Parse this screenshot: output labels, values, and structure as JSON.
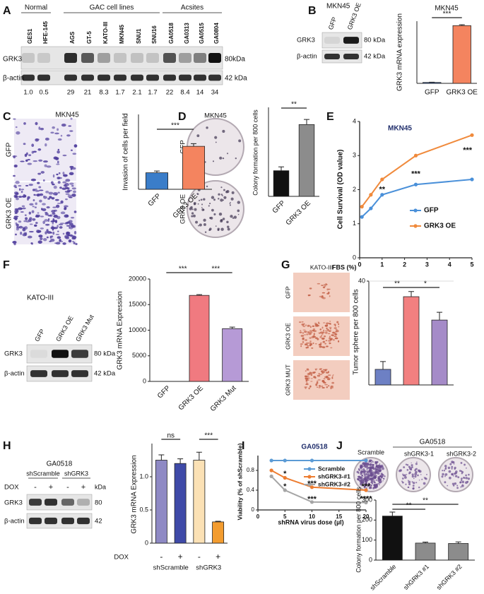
{
  "panel_letters": [
    "A",
    "B",
    "C",
    "D",
    "E",
    "F",
    "G",
    "H",
    "I",
    "J"
  ],
  "blots": [
    {
      "groups": [
        "Normal",
        "GAC cell lines",
        "Acsites"
      ],
      "lanes": [
        "GES1",
        "HFE-145",
        "AGS",
        "GT-5",
        "KATO-III",
        "MKN45",
        "SNU1",
        "SNU16",
        "GA0518",
        "GA0313",
        "GA0515",
        "GA0804"
      ],
      "rows": [
        "GRK3",
        "β-actin"
      ],
      "sizes": [
        "80kDa",
        "42 kDa"
      ],
      "quant": [
        "1.0",
        "0.5",
        "29",
        "21",
        "8.3",
        "1.7",
        "2.1",
        "1.7",
        "22",
        "8.4",
        "14",
        "34"
      ]
    },
    {
      "title": "MKN45",
      "lanes": [
        "GFP",
        "GRK3 OE"
      ],
      "rows": [
        "GRK3",
        "β-actin"
      ],
      "sizes": [
        "80 kDa",
        "42 kDa"
      ]
    },
    {
      "title": "KATO-III",
      "lanes": [
        "GFP",
        "GRK3 OE",
        "GRK3 Mut"
      ],
      "rows": [
        "GRK3",
        "β-actin"
      ],
      "sizes": [
        "80 kDa",
        "42 kDa"
      ]
    },
    {
      "title": "GA0518",
      "groups": [
        "shScramble",
        "shGRK3"
      ],
      "treatment": "DOX",
      "conditions": [
        "-",
        "+",
        "-",
        "+"
      ],
      "unit": "kDa",
      "rows": [
        "GRK3",
        "β-actin"
      ],
      "sizes": [
        "80",
        "42"
      ]
    }
  ],
  "images": [
    {
      "title": "MKN45",
      "labels": [
        "GFP",
        "GRK3 OE"
      ]
    },
    {
      "title": "MKN45",
      "labels": [
        "GFP",
        "GRK3 OE"
      ]
    },
    {
      "title": "KATO-III",
      "labels": [
        "GFP",
        "GRK3 OE",
        "GRK3 MUT"
      ]
    },
    {
      "title": "GA0518",
      "labels": [
        "Scramble",
        "shGRK3-1",
        "shGRK3-2"
      ]
    }
  ],
  "chart_data": [
    {
      "type": "bar",
      "title": "MKN45",
      "y_label": "GRK3 mRNA expression",
      "categories": [
        "GFP",
        "GRK3 OE"
      ],
      "values": [
        1,
        65
      ],
      "errors": [
        0.3,
        1
      ],
      "colors": [
        "#3a6fc4",
        "#f4845f"
      ],
      "ylim": [
        0,
        70
      ],
      "annotations": [
        "***"
      ]
    },
    {
      "type": "bar",
      "y_label": "Invasion of cells per field",
      "categories": [
        "GFP",
        "GRK3 OE"
      ],
      "values": [
        75,
        195
      ],
      "errors": [
        8,
        12
      ],
      "colors": [
        "#3a7dc9",
        "#f4845f"
      ],
      "ylim": [
        0,
        250
      ],
      "annotations": [
        "***"
      ]
    },
    {
      "type": "bar",
      "y_label": "Colony formation per 800 cells",
      "categories": [
        "GFP",
        "GRK3 OE"
      ],
      "values": [
        40,
        112
      ],
      "errors": [
        6,
        8
      ],
      "colors": [
        "#111111",
        "#8c8c8c"
      ],
      "ylim": [
        0,
        130
      ],
      "annotations": [
        "**"
      ]
    },
    {
      "type": "line",
      "title": "MKN45",
      "y_label": "Cell Survival (OD value)",
      "x_label": "FBS (%)",
      "x": [
        0.1,
        0.5,
        1,
        2.5,
        5
      ],
      "xlim": [
        0,
        5
      ],
      "xticks": [
        0,
        1,
        2,
        3,
        4,
        5
      ],
      "ylim": [
        0,
        4
      ],
      "yticks": [
        0,
        1,
        2,
        3,
        4
      ],
      "series": [
        {
          "name": "GFP",
          "color": "#4a90d9",
          "values": [
            1.2,
            1.45,
            1.85,
            2.15,
            2.3
          ]
        },
        {
          "name": "GRK3 OE",
          "color": "#f08a3c",
          "values": [
            1.5,
            1.85,
            2.3,
            3.0,
            3.6
          ]
        }
      ],
      "annotations": [
        "**",
        "***",
        "***"
      ]
    },
    {
      "type": "bar",
      "y_label": "GRK3 mRNA Expression",
      "categories": [
        "GFP",
        "GRK3 OE",
        "GRK3 Mut"
      ],
      "values": [
        0,
        16800,
        10300
      ],
      "errors": [
        0,
        150,
        300
      ],
      "colors": [
        "#ffffff",
        "#f07a80",
        "#b69ad6"
      ],
      "ylim": [
        0,
        20000
      ],
      "yticks": [
        0,
        5000,
        10000,
        15000,
        20000
      ],
      "annotations": [
        "***",
        "***"
      ]
    },
    {
      "type": "bar",
      "y_label": "Tumor sphere per 800 cells",
      "categories": [
        null,
        null,
        null
      ],
      "values": [
        6,
        34,
        25
      ],
      "errors": [
        3,
        2,
        3
      ],
      "colors": [
        "#6d80c4",
        "#f28080",
        "#a58bc8"
      ],
      "ylim": [
        0,
        40
      ],
      "yticks": [
        40
      ],
      "grid": true,
      "annotations": [
        "**",
        "*"
      ]
    },
    {
      "type": "bar",
      "y_label": "GRK3 mRNA Expression",
      "group_label": "DOX",
      "categories": [
        "-",
        "+",
        "-",
        "+"
      ],
      "groups": [
        "shScramble",
        "shGRK3"
      ],
      "values": [
        1.25,
        1.2,
        1.25,
        0.32
      ],
      "errors": [
        0.08,
        0.07,
        0.12,
        0.01
      ],
      "colors": [
        "#8e89c4",
        "#3f4aa8",
        "#fbe1b5",
        "#f39c2f"
      ],
      "ylim": [
        0,
        1.5
      ],
      "yticks": [
        0,
        0.5,
        {
          "value": 1,
          "label": "1.0"
        }
      ],
      "annotations": [
        "ns",
        "***"
      ]
    },
    {
      "type": "line",
      "title": "GA0518",
      "y_label": "Viability (% of shScramble)",
      "x_label": "shRNA virus dose (µl)",
      "x": [
        2.5,
        5,
        10,
        20
      ],
      "xlim": [
        0,
        20
      ],
      "xticks": [
        0,
        5,
        10,
        15,
        20
      ],
      "ylim": [
        0,
        1.1
      ],
      "yticks": [
        0,
        0.4,
        0.8
      ],
      "series": [
        {
          "name": "Scramble",
          "color": "#5b9bd5",
          "values": [
            1,
            1,
            1,
            1
          ]
        },
        {
          "name": "shGRK3-#1",
          "color": "#ed7d31",
          "values": [
            0.8,
            0.65,
            0.46,
            0.4
          ]
        },
        {
          "name": "shGRK3-#2",
          "color": "#a5a5a5",
          "values": [
            0.68,
            0.4,
            0.16,
            0.15
          ]
        }
      ],
      "annotations": [
        "*",
        "*",
        "***",
        "***",
        "***",
        "****"
      ]
    },
    {
      "type": "bar",
      "y_label": "Colony formation per 800 cells",
      "categories": [
        "shScramble",
        "shGRK3 #1",
        "shGRK3 #2"
      ],
      "values": [
        220,
        85,
        83
      ],
      "errors": [
        20,
        5,
        8
      ],
      "colors": [
        "#111111",
        "#8c8c8c",
        "#8c8c8c"
      ],
      "ylim": [
        0,
        300
      ],
      "yticks": [
        0,
        100,
        200,
        300
      ],
      "annotations": [
        "**",
        "**"
      ]
    }
  ]
}
